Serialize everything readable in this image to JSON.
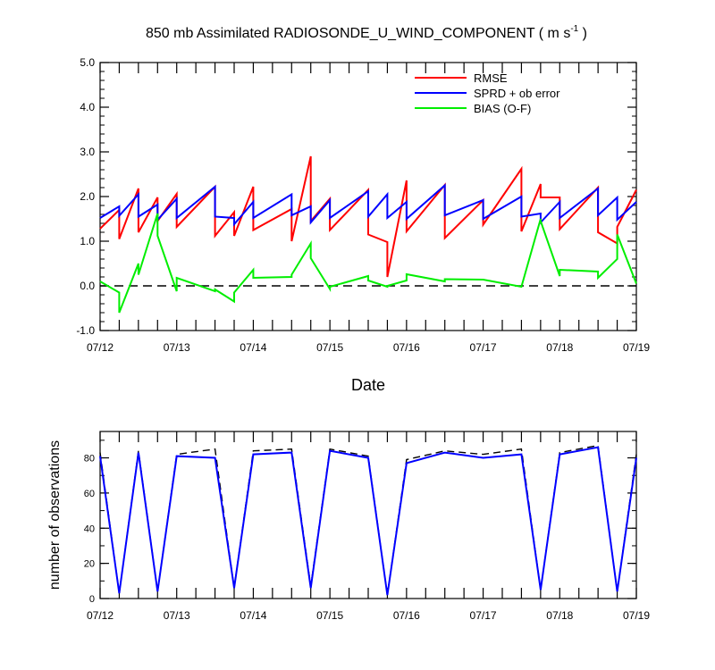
{
  "title": {
    "main": "850 mb Assimilated RADIOSONDE_U_WIND_COMPONENT ( m s",
    "unit_exp": "-1",
    "close": " )"
  },
  "colors": {
    "rmse": "#ff0000",
    "sprd": "#0000ff",
    "bias": "#00ee00",
    "obs_possible": "#000000",
    "zero_line": "#000000"
  },
  "chart_data": [
    {
      "type": "line",
      "xlabel": "Date",
      "ylabel": "",
      "xlim": [
        0,
        7
      ],
      "ylim": [
        -1,
        5
      ],
      "x_ticks": [
        0,
        1,
        2,
        3,
        4,
        5,
        6,
        7
      ],
      "x_ticklabels": [
        "07/12",
        "07/13",
        "07/14",
        "07/15",
        "07/16",
        "07/17",
        "07/18",
        "07/19"
      ],
      "y_ticks": [
        -1,
        0,
        1,
        2,
        3,
        4,
        5
      ],
      "y_ticklabels": [
        "-1.0",
        "0.0",
        "1.0",
        "2.0",
        "3.0",
        "4.0",
        "5.0"
      ],
      "legend": {
        "position": "top-right",
        "entries": [
          "RMSE",
          "SPRD + ob error",
          "BIAS (O-F)"
        ]
      },
      "series": [
        {
          "name": "RMSE",
          "color_key": "rmse",
          "x": [
            0,
            0.25,
            0.25,
            0.5,
            0.5,
            0.75,
            0.75,
            1,
            1,
            1.5,
            1.5,
            1.75,
            1.75,
            2,
            2,
            2.5,
            2.5,
            2.75,
            2.75,
            3,
            3,
            3.5,
            3.5,
            3.75,
            3.75,
            4,
            4,
            4.5,
            4.5,
            5,
            5,
            5.5,
            5.5,
            5.75,
            5.75,
            6,
            6,
            6.5,
            6.5,
            6.75,
            6.75,
            7
          ],
          "y": [
            1.28,
            1.7,
            1.05,
            2.18,
            1.2,
            1.98,
            1.45,
            2.06,
            1.32,
            2.22,
            1.12,
            1.65,
            1.12,
            2.22,
            1.25,
            1.72,
            1.0,
            2.9,
            1.45,
            1.95,
            1.25,
            2.15,
            1.15,
            0.98,
            0.2,
            2.36,
            1.22,
            2.26,
            1.07,
            1.92,
            1.37,
            2.62,
            1.22,
            2.28,
            1.98,
            1.98,
            1.27,
            2.2,
            1.2,
            0.95,
            1.32,
            2.15
          ]
        },
        {
          "name": "SPRD + ob error",
          "color_key": "sprd",
          "x": [
            0,
            0.25,
            0.25,
            0.5,
            0.5,
            0.75,
            0.75,
            1,
            1,
            1.5,
            1.5,
            1.75,
            1.75,
            2,
            2,
            2.5,
            2.5,
            2.75,
            2.75,
            3,
            3,
            3.5,
            3.5,
            3.75,
            3.75,
            4,
            4,
            4.5,
            4.5,
            5,
            5,
            5.5,
            5.5,
            5.75,
            5.75,
            6,
            6,
            6.5,
            6.5,
            6.75,
            6.75,
            7
          ],
          "y": [
            1.52,
            1.78,
            1.57,
            2.05,
            1.55,
            1.82,
            1.48,
            1.95,
            1.52,
            2.22,
            1.55,
            1.52,
            1.38,
            1.88,
            1.52,
            2.05,
            1.58,
            1.78,
            1.42,
            1.92,
            1.52,
            2.12,
            1.55,
            2.05,
            1.52,
            1.88,
            1.5,
            2.25,
            1.58,
            1.92,
            1.5,
            2.0,
            1.55,
            1.62,
            1.42,
            1.88,
            1.52,
            2.18,
            1.58,
            1.98,
            1.48,
            1.88
          ]
        },
        {
          "name": "BIAS (O-F)",
          "color_key": "bias",
          "x": [
            0,
            0.25,
            0.25,
            0.5,
            0.5,
            0.75,
            0.75,
            1,
            1,
            1.5,
            1.5,
            1.75,
            1.75,
            2,
            2,
            2.5,
            2.5,
            2.75,
            2.75,
            3,
            3,
            3.5,
            3.5,
            3.75,
            3.75,
            4,
            4,
            4.5,
            4.5,
            5,
            5,
            5.5,
            5.5,
            5.75,
            5.75,
            6,
            6,
            6.5,
            6.5,
            6.75,
            6.75,
            7
          ],
          "y": [
            0.1,
            -0.15,
            -0.6,
            0.5,
            0.25,
            1.62,
            1.12,
            -0.12,
            0.18,
            -0.12,
            -0.08,
            -0.35,
            -0.15,
            0.36,
            0.18,
            0.2,
            0.25,
            0.95,
            0.62,
            -0.07,
            -0.02,
            0.22,
            0.12,
            -0.02,
            0.0,
            0.12,
            0.26,
            0.1,
            0.15,
            0.14,
            0.14,
            -0.02,
            -0.02,
            1.5,
            1.45,
            0.22,
            0.36,
            0.32,
            0.18,
            0.6,
            1.15,
            0.05
          ]
        }
      ]
    },
    {
      "type": "line",
      "xlabel": "",
      "ylabel": "number of observations",
      "xlim": [
        0,
        7
      ],
      "ylim": [
        0,
        95
      ],
      "x_ticks": [
        0,
        1,
        2,
        3,
        4,
        5,
        6,
        7
      ],
      "x_ticklabels": [
        "07/12",
        "07/13",
        "07/14",
        "07/15",
        "07/16",
        "07/17",
        "07/18",
        "07/19"
      ],
      "y_ticks": [
        0,
        20,
        40,
        60,
        80
      ],
      "y_ticklabels": [
        "0",
        "20",
        "40",
        "60",
        "80"
      ],
      "series": [
        {
          "color_key": "obs_possible",
          "dashed": true,
          "x": [
            0,
            0.25,
            0.5,
            0.75,
            1,
            1.5,
            1.75,
            2,
            2.5,
            2.75,
            3,
            3.5,
            3.75,
            4,
            4.5,
            5,
            5.5,
            5.75,
            6,
            6.5,
            6.75,
            7
          ],
          "y": [
            83,
            3,
            84,
            4,
            82,
            85,
            6,
            84,
            85,
            7,
            85,
            81,
            2,
            79,
            84,
            82,
            85,
            5,
            83,
            87,
            4,
            82
          ]
        },
        {
          "color_key": "sprd",
          "x": [
            0,
            0.25,
            0.5,
            0.75,
            1,
            1.5,
            1.75,
            2,
            2.5,
            2.75,
            3,
            3.5,
            3.75,
            4,
            4.5,
            5,
            5.5,
            5.75,
            6,
            6.5,
            6.75,
            7
          ],
          "y": [
            81,
            3,
            83,
            4,
            81,
            80,
            6,
            82,
            83,
            6,
            84,
            80,
            2,
            77,
            83,
            80,
            82,
            5,
            82,
            86,
            4,
            80
          ]
        }
      ]
    }
  ]
}
